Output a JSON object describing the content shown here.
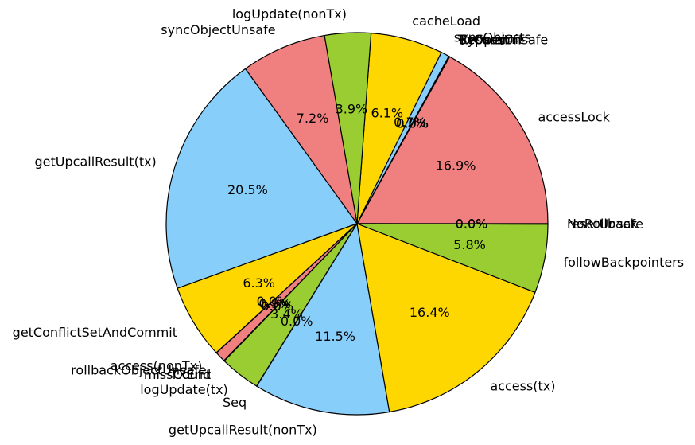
{
  "chart_data": {
    "type": "pie",
    "title": "",
    "start_angle_deg": 0,
    "direction": "counterclockwise",
    "slices": [
      {
        "label": "accessLock",
        "value": 16.9,
        "pct_label": "16.9%",
        "color": "#F08080"
      },
      {
        "label": "Recursion",
        "value": 0.02,
        "pct_label": "0.0%",
        "color": "#87CEFA"
      },
      {
        "label": "BypassUnsafe",
        "value": 0.02,
        "pct_label": "0.0%",
        "color": "#F08080"
      },
      {
        "label": "TxOpen",
        "value": 0.02,
        "pct_label": "0.0%",
        "color": "#9ACD32"
      },
      {
        "label": "TxCommit",
        "value": 0.02,
        "pct_label": "0.0%",
        "color": "#FFD700"
      },
      {
        "label": "syncObjects",
        "value": 0.7,
        "pct_label": "0.7%",
        "color": "#87CEFA"
      },
      {
        "label": "cacheLoad",
        "value": 6.1,
        "pct_label": "6.1%",
        "color": "#FFD700"
      },
      {
        "label": "logUpdate(nonTx)",
        "value": 3.9,
        "pct_label": "3.9%",
        "color": "#9ACD32"
      },
      {
        "label": "syncObjectUnsafe",
        "value": 7.2,
        "pct_label": "7.2%",
        "color": "#F08080"
      },
      {
        "label": "getUpcallResult(tx)",
        "value": 20.5,
        "pct_label": "20.5%",
        "color": "#87CEFA"
      },
      {
        "label": "getConflictSetAndCommit",
        "value": 6.3,
        "pct_label": "6.3%",
        "color": "#FFD700"
      },
      {
        "label": "access(nonTx)",
        "value": 0.02,
        "pct_label": "0.0%",
        "color": "#9ACD32"
      },
      {
        "label": "rollbackObjectUnsafe",
        "value": 0.9,
        "pct_label": "0.9%",
        "color": "#F08080"
      },
      {
        "label": "missCount",
        "value": 0.02,
        "pct_label": "0.0%",
        "color": "#87CEFA"
      },
      {
        "label": "TXEnd",
        "value": 0.02,
        "pct_label": "0.0%",
        "color": "#FFD700"
      },
      {
        "label": "logUpdate(tx)",
        "value": 3.4,
        "pct_label": "3.4%",
        "color": "#9ACD32"
      },
      {
        "label": "Seq",
        "value": 0.02,
        "pct_label": "0.0%",
        "color": "#F08080"
      },
      {
        "label": "getUpcallResult(nonTx)",
        "value": 11.5,
        "pct_label": "11.5%",
        "color": "#87CEFA"
      },
      {
        "label": "access(tx)",
        "value": 16.4,
        "pct_label": "16.4%",
        "color": "#FFD700"
      },
      {
        "label": "followBackpointers",
        "value": 5.8,
        "pct_label": "5.8%",
        "color": "#9ACD32"
      },
      {
        "label": "resetUnsafe",
        "value": 0.02,
        "pct_label": "0.0%",
        "color": "#F08080"
      },
      {
        "label": "NoRollback",
        "value": 0.02,
        "pct_label": "0.0%",
        "color": "#87CEFA"
      }
    ]
  }
}
